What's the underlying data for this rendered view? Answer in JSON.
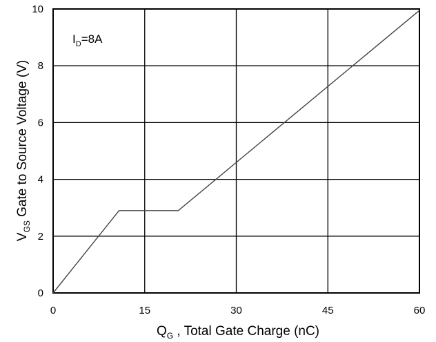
{
  "chart_data": {
    "type": "line",
    "xlabel": {
      "sym": "Q",
      "sub": "G",
      "rest": " , Total Gate Charge (nC)"
    },
    "ylabel": {
      "sym": "V",
      "sub": "GS",
      "rest": "   Gate to Source Voltage (V)"
    },
    "xlim": [
      0,
      60
    ],
    "ylim": [
      0,
      10
    ],
    "xticks": [
      0,
      15,
      30,
      45,
      60
    ],
    "yticks": [
      0,
      2,
      4,
      6,
      8,
      10
    ],
    "grid": true,
    "annotation": {
      "sym": "I",
      "sub": "D",
      "rest": "=8A"
    },
    "series": [
      {
        "x": [
          0,
          10.8,
          20.5,
          60
        ],
        "y": [
          0,
          2.9,
          2.9,
          9.95
        ]
      }
    ]
  },
  "colors": {
    "line": "#444444",
    "grid": "#000000",
    "frame": "#000000"
  }
}
